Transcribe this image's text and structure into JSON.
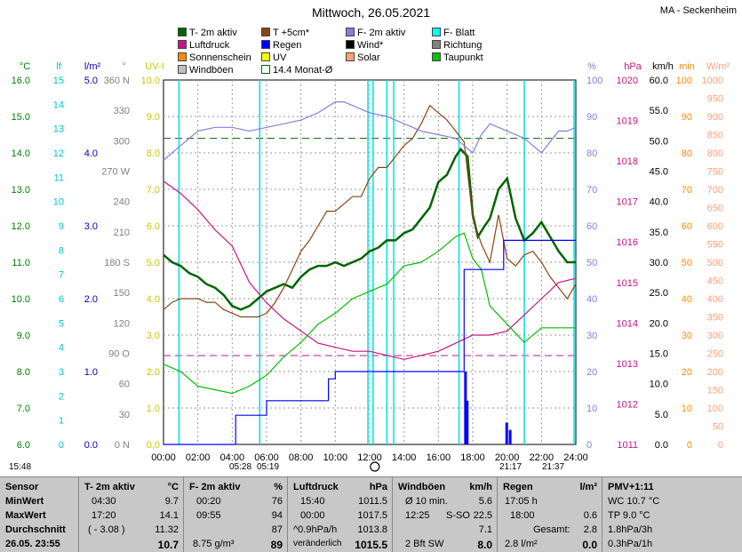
{
  "header": {
    "title": "Mittwoch, 26.05.2021",
    "station": "MA - Seckenheim"
  },
  "legend": [
    {
      "label": "T- 2m aktiv",
      "color": "#006400"
    },
    {
      "label": "T +5cm*",
      "color": "#8b4513"
    },
    {
      "label": "F- 2m aktiv",
      "color": "#8080e0"
    },
    {
      "label": "F- Blatt",
      "color": "#00ffff"
    },
    {
      "label": "Luftdruck",
      "color": "#c71585"
    },
    {
      "label": "Regen",
      "color": "#0000ff"
    },
    {
      "label": "Wind*",
      "color": "#000000"
    },
    {
      "label": "Richtung",
      "color": "#808080"
    },
    {
      "label": "Sonnenschein",
      "color": "#ff8c00"
    },
    {
      "label": "UV",
      "color": "#ffff00"
    },
    {
      "label": "Solar",
      "color": "#ffa07a"
    },
    {
      "label": "Taupunkt",
      "color": "#00c000"
    },
    {
      "label": "Windböen",
      "color": "#c0c0c0"
    },
    {
      "label": "14.4 Monat-Ø",
      "color": "#ffffff"
    }
  ],
  "chart_data": {
    "type": "line",
    "x_ticks": [
      "00:00",
      "02:00",
      "04:00",
      "06:00",
      "08:00",
      "10:00",
      "12:00",
      "14:00",
      "16:00",
      "18:00",
      "20:00",
      "22:00",
      "24:00"
    ],
    "axes": {
      "celsius": {
        "unit": "°C",
        "ticks": [
          "16.0",
          "15.0",
          "14.0",
          "13.0",
          "12.0",
          "11.0",
          "10.0",
          "9.0",
          "8.0",
          "7.0",
          "6.0"
        ],
        "ylim": [
          6,
          16
        ]
      },
      "leaf_wetness": {
        "unit": "lf",
        "ticks": [
          "15",
          "14",
          "13",
          "12",
          "11",
          "10",
          "9",
          "8",
          "7",
          "6",
          "5",
          "4",
          "3",
          "2",
          "1",
          "0"
        ],
        "ylim": [
          0,
          15
        ]
      },
      "rain_rate": {
        "unit": "l/m²",
        "ticks": [
          "5.0",
          "4.0",
          "3.0",
          "2.0",
          "1.0",
          "0.0"
        ],
        "ylim": [
          0,
          5
        ]
      },
      "direction": {
        "unit": "°",
        "ticks": [
          "360 N",
          "330",
          "300",
          "270 W",
          "240",
          "210",
          "180 S",
          "150",
          "120",
          "90 O",
          "60",
          "30",
          "0 N"
        ],
        "ylim": [
          0,
          360
        ]
      },
      "uv": {
        "unit": "UV-I",
        "ticks": [
          "10.0",
          "9.0",
          "8.0",
          "7.0",
          "6.0",
          "5.0",
          "4.0",
          "3.0",
          "2.0",
          "1.0",
          "0.0"
        ],
        "ylim": [
          0,
          10
        ]
      },
      "humidity": {
        "unit": "%",
        "ticks": [
          "100",
          "90",
          "80",
          "70",
          "60",
          "50",
          "40",
          "30",
          "20",
          "10",
          "0"
        ],
        "ylim": [
          0,
          100
        ]
      },
      "pressure": {
        "unit": "hPa",
        "ticks": [
          "1020",
          "1019",
          "1018",
          "1017",
          "1016",
          "1015",
          "1014",
          "1013",
          "1012",
          "1011"
        ],
        "ylim": [
          1011,
          1020
        ]
      },
      "wind": {
        "unit": "km/h",
        "ticks": [
          "60.0",
          "55.0",
          "50.0",
          "45.0",
          "40.0",
          "35.0",
          "30.0",
          "25.0",
          "20.0",
          "15.0",
          "10.0",
          "5.0",
          "0.0"
        ],
        "ylim": [
          0,
          60
        ]
      },
      "minutes": {
        "unit": "min",
        "ticks": [
          "100",
          "90",
          "80",
          "70",
          "60",
          "50",
          "40",
          "30",
          "20",
          "10",
          "0"
        ],
        "ylim": [
          0,
          100
        ]
      },
      "solar": {
        "unit": "W/m²",
        "ticks": [
          "1000",
          "950",
          "900",
          "850",
          "800",
          "750",
          "700",
          "650",
          "600",
          "550",
          "500",
          "450",
          "400",
          "350",
          "300",
          "250",
          "200",
          "150",
          "100",
          "50",
          "0"
        ],
        "ylim": [
          0,
          1000
        ]
      }
    },
    "monthly_mean_temp": 14.4,
    "series": [
      {
        "name": "T- 2m aktiv",
        "axis": "celsius",
        "color": "#006400",
        "x": [
          0,
          0.5,
          1,
          1.5,
          2,
          2.5,
          3,
          3.5,
          4,
          4.5,
          5,
          5.5,
          6,
          6.5,
          7,
          7.5,
          8,
          8.5,
          9,
          9.5,
          10,
          10.5,
          11,
          11.5,
          12,
          12.5,
          13,
          13.5,
          14,
          14.5,
          15,
          15.5,
          16,
          16.5,
          17,
          17.3,
          17.7,
          18,
          18.3,
          18.7,
          19,
          19.5,
          20,
          20.5,
          21,
          21.5,
          22,
          22.5,
          23,
          23.5,
          24
        ],
        "y": [
          11.2,
          11.0,
          10.9,
          10.7,
          10.6,
          10.4,
          10.3,
          10.1,
          9.8,
          9.7,
          9.8,
          10.0,
          10.2,
          10.3,
          10.4,
          10.3,
          10.6,
          10.8,
          10.9,
          10.9,
          11.0,
          10.9,
          11.0,
          11.1,
          11.3,
          11.4,
          11.6,
          11.6,
          11.8,
          11.9,
          12.2,
          12.5,
          13.2,
          13.4,
          13.9,
          14.1,
          13.9,
          12.3,
          11.7,
          12.0,
          12.2,
          13.0,
          13.3,
          12.2,
          11.6,
          11.8,
          12.1,
          11.7,
          11.3,
          11.0,
          11.0
        ]
      },
      {
        "name": "T +5cm*",
        "axis": "celsius",
        "color": "#8b4513",
        "x": [
          0,
          0.5,
          1,
          1.5,
          2,
          2.5,
          3,
          3.5,
          4,
          4.5,
          5,
          5.5,
          6,
          6.5,
          7,
          7.5,
          8,
          8.5,
          9,
          9.5,
          10,
          10.5,
          11,
          11.5,
          12,
          12.5,
          13,
          13.5,
          14,
          14.5,
          15,
          15.5,
          16,
          16.5,
          17,
          17.5,
          18,
          18.5,
          19,
          19.5,
          20,
          20.5,
          21,
          21.5,
          22,
          22.5,
          23,
          23.5,
          24
        ],
        "y": [
          9.7,
          9.9,
          10.0,
          10.0,
          10.0,
          9.9,
          9.9,
          9.7,
          9.6,
          9.5,
          9.5,
          9.5,
          9.6,
          9.9,
          10.3,
          10.8,
          11.3,
          11.6,
          12.0,
          12.4,
          12.4,
          12.6,
          12.8,
          12.8,
          13.3,
          13.6,
          13.6,
          13.9,
          14.2,
          14.4,
          14.8,
          15.3,
          15.1,
          14.9,
          14.6,
          14.3,
          12.2,
          11.5,
          11.0,
          12.3,
          11.1,
          10.9,
          11.2,
          11.3,
          11.0,
          10.6,
          10.3,
          10.0,
          10.4
        ]
      },
      {
        "name": "F- 2m aktiv",
        "axis": "humidity",
        "color": "#8080e0",
        "x": [
          0,
          1,
          2,
          3,
          4,
          5,
          6,
          7,
          8,
          9,
          10,
          10.5,
          11,
          12,
          13,
          14,
          15,
          16,
          17,
          17.5,
          18,
          18.5,
          19,
          20,
          21,
          22,
          23,
          23.5,
          24
        ],
        "y": [
          78,
          82,
          86,
          87,
          87,
          86,
          87,
          88,
          89,
          91,
          94,
          94,
          93,
          91,
          90,
          88,
          86,
          85,
          84,
          82,
          80,
          85,
          88,
          86,
          84,
          80,
          86,
          86,
          87
        ]
      },
      {
        "name": "Luftdruck",
        "axis": "pressure",
        "color": "#c71585",
        "x": [
          0,
          1,
          2,
          3,
          4,
          5,
          6,
          7,
          8,
          9,
          10,
          11,
          12,
          13,
          14,
          15,
          16,
          17,
          18,
          19,
          20,
          21,
          22,
          23,
          24
        ],
        "y": [
          1017.5,
          1017.2,
          1016.8,
          1016.3,
          1015.9,
          1015.0,
          1014.5,
          1014.1,
          1013.8,
          1013.5,
          1013.4,
          1013.3,
          1013.3,
          1013.2,
          1013.1,
          1013.2,
          1013.3,
          1013.5,
          1013.7,
          1013.7,
          1013.8,
          1014.2,
          1014.6,
          1015.0,
          1015.1
        ]
      },
      {
        "name": "Taupunkt",
        "axis": "celsius",
        "color": "#00c000",
        "x": [
          0,
          1,
          2,
          3,
          4,
          5,
          6,
          7,
          8,
          9,
          10,
          11,
          12,
          13,
          14,
          15,
          16,
          17,
          17.5,
          18,
          18.5,
          19,
          20,
          21,
          22,
          23,
          24
        ],
        "y": [
          8.2,
          8.0,
          7.6,
          7.5,
          7.4,
          7.6,
          7.9,
          8.4,
          8.8,
          9.3,
          9.6,
          10.0,
          10.2,
          10.4,
          10.9,
          11.0,
          11.3,
          11.7,
          11.8,
          11.1,
          10.8,
          9.8,
          9.3,
          8.8,
          9.2,
          9.2,
          9.2
        ]
      },
      {
        "name": "Regen",
        "axis": "rain_rate",
        "color": "#0000ff",
        "x": [
          0,
          4.2,
          4.2,
          6.0,
          6.0,
          9.6,
          9.6,
          10.0,
          10.0,
          13.5,
          13.5,
          17.5,
          17.5,
          19.8,
          19.8,
          20.6,
          20.6,
          24
        ],
        "y": [
          0,
          0,
          0.4,
          0.4,
          0.6,
          0.6,
          0.9,
          0.9,
          1.0,
          1.0,
          1.0,
          1.0,
          2.4,
          2.4,
          2.8,
          2.8,
          2.8,
          2.8
        ]
      }
    ],
    "sun_times": {
      "sunrise": "05:28",
      "sunset": "21:37",
      "civil_dawn": "05:19",
      "civil_dusk": "21:17",
      "first_time": "15:48"
    }
  },
  "table": {
    "sensor": {
      "header": "Sensor",
      "rows": [
        "MinWert",
        "MaxWert",
        "Durchschnitt",
        "26.05. 23:55"
      ]
    },
    "t2m": {
      "header": "T- 2m aktiv",
      "unit": "°C",
      "min_time": "04:30",
      "min": "9.7",
      "max_time": "17:20",
      "max": "14.1",
      "avg_note": "( - 3.08 )",
      "avg": "11.32",
      "current": "10.7"
    },
    "f2m": {
      "header": "F- 2m aktiv",
      "unit": "%",
      "min_time": "00:20",
      "min": "76",
      "max_time": "09:55",
      "max": "94",
      "avg": "87",
      "abs": "8.75 g/m³",
      "current": "89"
    },
    "pressure": {
      "header": "Luftdruck",
      "unit": "hPa",
      "min_time": "15:40",
      "min": "1011.5",
      "max_time": "00:00",
      "max": "1017.5",
      "trend_val": "^0.9hPa/h",
      "avg": "1013.8",
      "trend": "veränderlich",
      "current": "1015.5"
    },
    "gusts": {
      "header": "Windböen",
      "unit": "km/h",
      "avg10": "Ø 10 min.",
      "avg10_val": "5.6",
      "max_time": "12:25",
      "max_dir": "S-SO",
      "max": "22.5",
      "avg": "7.1",
      "bft": "2 Bft SW",
      "current": "8.0"
    },
    "rain": {
      "header": "Regen",
      "unit": "l/m²",
      "t1": "17:05 h",
      "t2": "18:00",
      "v2": "0.6",
      "total_label": "Gesamt:",
      "total": "2.8",
      "month": "2.8 l/m²",
      "current": "0.0"
    },
    "pmv": {
      "header": "PMV+1:11",
      "l1": "WC 10.7 °C",
      "l2": "TP 9.0 °C",
      "l3": "1.8hPa/3h",
      "l4": "0.3hPa/1h"
    }
  }
}
